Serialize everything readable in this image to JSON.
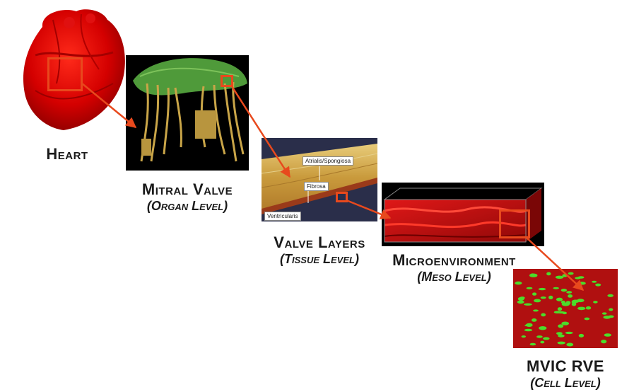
{
  "stages": {
    "heart": {
      "title": "Heart"
    },
    "mitral": {
      "title": "Mitral Valve",
      "level": "(Organ Level)"
    },
    "layers": {
      "title": "Valve Layers",
      "level": "(Tissue Level)",
      "labels": {
        "atrialis": "Atrialis/Spongiosa",
        "fibrosa": "Fibrosa",
        "ventricularis": "Ventricularis"
      }
    },
    "micro": {
      "title": "Microenvironment",
      "level": "(Meso Level)"
    },
    "mvic": {
      "title": "MVIC RVE",
      "level": "(Cell Level)"
    }
  },
  "colors": {
    "accent": "#e8491d",
    "heart": "#d40000",
    "valve_leaflet": "#4f9a3a",
    "chordae": "#c9a548",
    "tissue": "#d6b25c",
    "micro_red": "#c01010",
    "cell_green": "#4cdc2a"
  }
}
